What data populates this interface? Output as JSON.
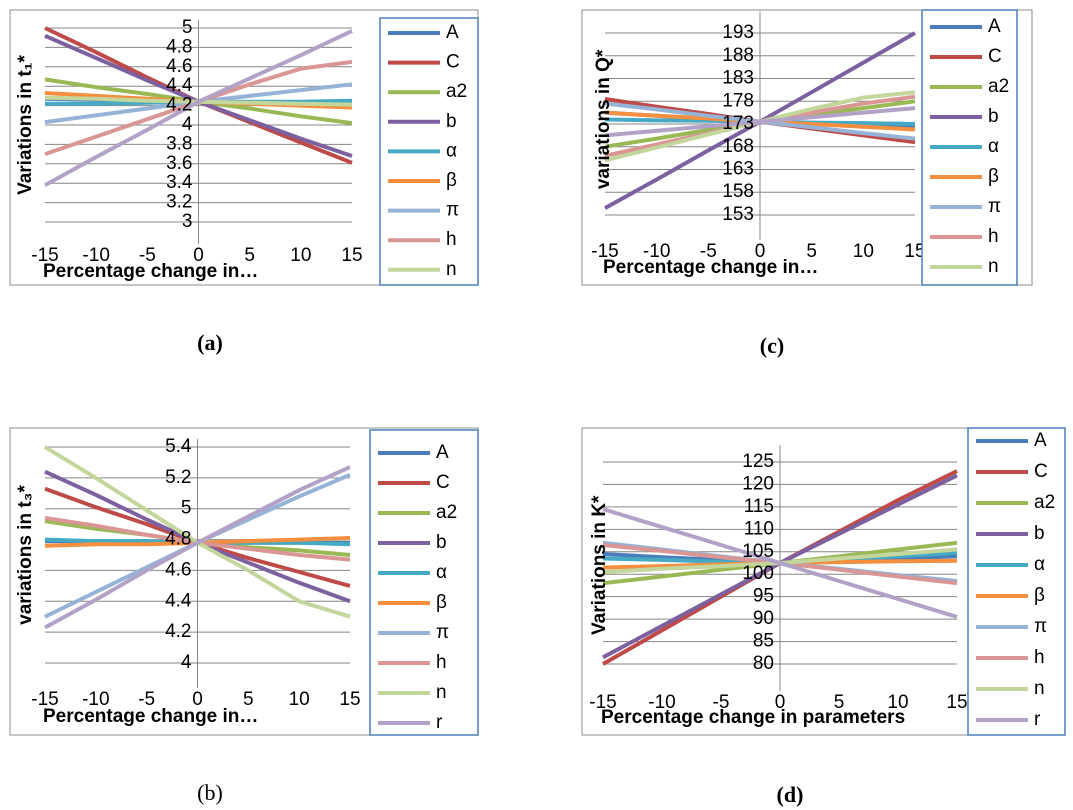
{
  "chart_data": [
    {
      "type": "line",
      "caption": "(a)",
      "y_label": "Variations in t₁*",
      "x_label": "Percentage change in…",
      "x": [
        -15,
        -10,
        -5,
        0,
        5,
        10,
        15
      ],
      "xlim": [
        -15,
        15
      ],
      "xticks": [
        -15,
        -10,
        -5,
        0,
        5,
        10,
        15
      ],
      "ylim": [
        3,
        5
      ],
      "yticks": [
        3,
        3.2,
        3.4,
        3.6,
        3.8,
        4,
        4.2,
        4.4,
        4.6,
        4.8,
        5
      ],
      "grid": true,
      "series": [
        {
          "name": "A",
          "color": "#4a7ebb",
          "values": [
            4.27,
            4.26,
            4.25,
            4.24,
            4.23,
            4.22,
            4.21
          ]
        },
        {
          "name": "C",
          "color": "#be4b48",
          "values": [
            5.0,
            4.75,
            4.49,
            4.24,
            4.03,
            3.82,
            3.61
          ]
        },
        {
          "name": "a2",
          "color": "#98b954",
          "values": [
            4.47,
            4.39,
            4.32,
            4.24,
            4.17,
            4.09,
            4.02
          ]
        },
        {
          "name": "b",
          "color": "#7d60a0",
          "values": [
            4.92,
            4.69,
            4.46,
            4.24,
            4.05,
            3.86,
            3.68
          ]
        },
        {
          "name": "α",
          "color": "#46aac5",
          "values": [
            4.22,
            4.22,
            4.23,
            4.24,
            4.24,
            4.24,
            4.25
          ]
        },
        {
          "name": "β",
          "color": "#f38f3f",
          "values": [
            4.33,
            4.3,
            4.27,
            4.24,
            4.22,
            4.2,
            4.18
          ]
        },
        {
          "name": "π",
          "color": "#95b3d7",
          "values": [
            4.03,
            4.1,
            4.17,
            4.24,
            4.3,
            4.36,
            4.42
          ]
        },
        {
          "name": "h",
          "color": "#d99694",
          "values": [
            3.7,
            3.88,
            4.06,
            4.24,
            4.42,
            4.58,
            4.65
          ]
        },
        {
          "name": "n",
          "color": "#c3d69b",
          "values": [
            4.28,
            4.27,
            4.25,
            4.24,
            4.23,
            4.22,
            4.21
          ]
        },
        {
          "color": "#b2a2c7",
          "values": [
            3.38,
            3.67,
            3.95,
            4.24,
            4.48,
            4.72,
            4.97
          ]
        }
      ]
    },
    {
      "type": "line",
      "caption": "(c)",
      "y_label": "variations in Q*",
      "x_label": "Percentage change in…",
      "x": [
        -15,
        -10,
        -5,
        0,
        5,
        10,
        15
      ],
      "xlim": [
        -15,
        15
      ],
      "xticks": [
        -15,
        -10,
        -5,
        0,
        5,
        10,
        15
      ],
      "ylim": [
        152,
        196
      ],
      "yticks": [
        153,
        158,
        163,
        168,
        173,
        178,
        183,
        188,
        193
      ],
      "grid": true,
      "series": [
        {
          "name": "A",
          "color": "#4a7ebb",
          "values": [
            175.5,
            174.8,
            174.2,
            173.5,
            173.2,
            172.9,
            172.6
          ]
        },
        {
          "name": "C",
          "color": "#be4b48",
          "values": [
            178.5,
            176.8,
            175.2,
            173.5,
            172,
            170.5,
            169
          ]
        },
        {
          "name": "a2",
          "color": "#98b954",
          "values": [
            168,
            169.8,
            171.7,
            173.5,
            175,
            176.5,
            178
          ]
        },
        {
          "name": "b",
          "color": "#7d60a0",
          "values": [
            154.5,
            160.8,
            167.2,
            173.5,
            180,
            186.5,
            193
          ]
        },
        {
          "name": "α",
          "color": "#46aac5",
          "values": [
            174,
            173.8,
            173.7,
            173.5,
            173.3,
            173.2,
            173
          ]
        },
        {
          "name": "β",
          "color": "#f38f3f",
          "values": [
            175.5,
            174.8,
            174.2,
            173.5,
            173,
            172.4,
            171.8
          ]
        },
        {
          "name": "π",
          "color": "#95b3d7",
          "values": [
            177.5,
            176.2,
            174.8,
            173.5,
            172.3,
            171,
            169.8
          ]
        },
        {
          "name": "h",
          "color": "#d99694",
          "values": [
            166,
            168.5,
            171,
            173.5,
            175.5,
            177.5,
            179
          ]
        },
        {
          "name": "n",
          "color": "#c3d69b",
          "values": [
            165,
            167.8,
            170.7,
            173.5,
            176.3,
            178.8,
            180
          ]
        },
        {
          "color": "#b2a2c7",
          "values": [
            170.5,
            171.5,
            172.5,
            173.5,
            174.5,
            175.5,
            176.5
          ]
        }
      ]
    },
    {
      "type": "line",
      "caption": "(b)",
      "y_label": "variations in t₃*",
      "x_label": "Percentage change in…",
      "x": [
        -15,
        -10,
        -5,
        0,
        5,
        10,
        15
      ],
      "xlim": [
        -15,
        15
      ],
      "xticks": [
        -15,
        -10,
        -5,
        0,
        5,
        10,
        15
      ],
      "ylim": [
        4,
        5.4
      ],
      "yticks": [
        4,
        4.2,
        4.4,
        4.6,
        4.8,
        5,
        5.2,
        5.4
      ],
      "grid": true,
      "series": [
        {
          "name": "A",
          "color": "#4a7ebb",
          "values": [
            4.79,
            4.79,
            4.78,
            4.78,
            4.78,
            4.78,
            4.78
          ]
        },
        {
          "name": "C",
          "color": "#be4b48",
          "values": [
            5.13,
            5.01,
            4.9,
            4.78,
            4.68,
            4.59,
            4.5
          ]
        },
        {
          "name": "a2",
          "color": "#98b954",
          "values": [
            4.92,
            4.87,
            4.83,
            4.78,
            4.75,
            4.73,
            4.7
          ]
        },
        {
          "name": "b",
          "color": "#7d60a0",
          "values": [
            5.24,
            5.09,
            4.93,
            4.78,
            4.65,
            4.52,
            4.4
          ]
        },
        {
          "name": "α",
          "color": "#46aac5",
          "values": [
            4.8,
            4.79,
            4.79,
            4.78,
            4.78,
            4.78,
            4.77
          ]
        },
        {
          "name": "β",
          "color": "#f38f3f",
          "values": [
            4.76,
            4.77,
            4.77,
            4.78,
            4.79,
            4.8,
            4.81
          ]
        },
        {
          "name": "π",
          "color": "#95b3d7",
          "values": [
            4.3,
            4.46,
            4.62,
            4.78,
            4.93,
            5.08,
            5.22
          ]
        },
        {
          "name": "h",
          "color": "#d99694",
          "values": [
            4.94,
            4.89,
            4.83,
            4.78,
            4.74,
            4.7,
            4.67
          ]
        },
        {
          "name": "n",
          "color": "#c3d69b",
          "values": [
            5.4,
            5.2,
            4.99,
            4.78,
            4.6,
            4.4,
            4.3
          ]
        },
        {
          "name": "r",
          "color": "#b2a2c7",
          "values": [
            4.23,
            4.41,
            4.6,
            4.78,
            4.95,
            5.12,
            5.27
          ]
        }
      ]
    },
    {
      "type": "line",
      "caption": "(d)",
      "y_label": "Variations in K*",
      "x_label": "Percentage  change in parameters",
      "x": [
        -15,
        -10,
        -5,
        0,
        5,
        10,
        15
      ],
      "xlim": [
        -15,
        15
      ],
      "xticks": [
        -15,
        -10,
        -5,
        0,
        5,
        10,
        15
      ],
      "ylim": [
        77,
        127
      ],
      "yticks": [
        80,
        85,
        90,
        95,
        100,
        105,
        110,
        115,
        120,
        125
      ],
      "grid": true,
      "series": [
        {
          "name": "A",
          "color": "#4a7ebb",
          "values": [
            104.5,
            103.8,
            103.2,
            102.5,
            103,
            103.5,
            104
          ]
        },
        {
          "name": "C",
          "color": "#be4b48",
          "values": [
            80,
            87.5,
            95,
            102.5,
            109.5,
            116.5,
            123
          ]
        },
        {
          "name": "a2",
          "color": "#98b954",
          "values": [
            98,
            99.5,
            101,
            102.5,
            104,
            105.5,
            107
          ]
        },
        {
          "name": "b",
          "color": "#7d60a0",
          "values": [
            81.5,
            88.5,
            95.5,
            102.5,
            109,
            115.5,
            122
          ]
        },
        {
          "name": "α",
          "color": "#46aac5",
          "values": [
            103.5,
            103.2,
            102.8,
            102.5,
            103.3,
            104,
            104.8
          ]
        },
        {
          "name": "β",
          "color": "#f38f3f",
          "values": [
            101.5,
            101.8,
            102.2,
            102.5,
            102.7,
            102.9,
            103
          ]
        },
        {
          "name": "π",
          "color": "#95b3d7",
          "values": [
            107,
            105.5,
            104,
            102.5,
            101.2,
            99.8,
            98.5
          ]
        },
        {
          "name": "h",
          "color": "#d99694",
          "values": [
            106.5,
            105.2,
            103.8,
            102.5,
            101,
            99.5,
            98
          ]
        },
        {
          "name": "n",
          "color": "#c3d69b",
          "values": [
            100.5,
            101.2,
            101.8,
            102.5,
            103.5,
            104.5,
            105.5
          ]
        },
        {
          "name": "r",
          "color": "#b2a2c7",
          "values": [
            114.5,
            110.5,
            106.5,
            102.5,
            98.5,
            94.5,
            90.5
          ]
        }
      ]
    }
  ]
}
